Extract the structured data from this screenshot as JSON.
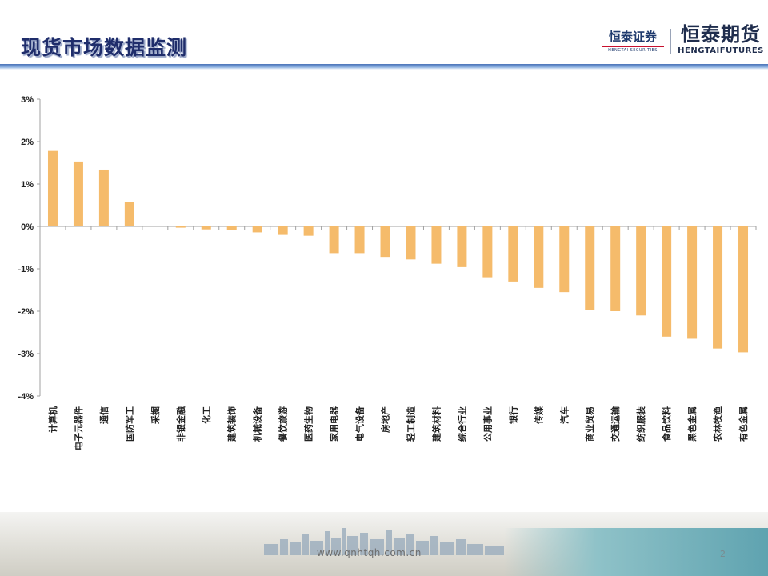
{
  "header": {
    "title": "现货市场数据监测",
    "logo_securities": {
      "main": "恒泰证券",
      "sub": "HENGTAI SECURITIES"
    },
    "logo_futures": {
      "main": "恒泰期货",
      "sub": "HENGTAIFUTURES"
    }
  },
  "footer": {
    "url": "www.qnhtqh.com.cn",
    "page_number": "2"
  },
  "colors": {
    "bar": "#f5bb6b",
    "title": "#1f2d6b",
    "axis": "#a0a0a0"
  },
  "chart_data": {
    "type": "bar",
    "title": "",
    "xlabel": "",
    "ylabel": "",
    "ylim": [
      -4,
      3
    ],
    "yticks": [
      {
        "value": 3,
        "label": "3%"
      },
      {
        "value": 2,
        "label": "2%"
      },
      {
        "value": 1,
        "label": "1%"
      },
      {
        "value": 0,
        "label": "0%"
      },
      {
        "value": -1,
        "label": "-1%"
      },
      {
        "value": -2,
        "label": "-2%"
      },
      {
        "value": -3,
        "label": "-3%"
      },
      {
        "value": -4,
        "label": "-4%"
      }
    ],
    "grid": false,
    "legend": "none",
    "categories": [
      "计算机",
      "电子元器件",
      "通信",
      "国防军工",
      "采掘",
      "非银金融",
      "化工",
      "建筑装饰",
      "机械设备",
      "餐饮旅游",
      "医药生物",
      "家用电器",
      "电气设备",
      "房地产",
      "轻工制造",
      "建筑材料",
      "综合行业",
      "公用事业",
      "银行",
      "传媒",
      "汽车",
      "商业贸易",
      "交通运输",
      "纺织服装",
      "食品饮料",
      "黑色金属",
      "农林牧渔",
      "有色金属"
    ],
    "values": [
      1.78,
      1.53,
      1.34,
      0.58,
      0.0,
      -0.03,
      -0.07,
      -0.09,
      -0.14,
      -0.2,
      -0.22,
      -0.63,
      -0.63,
      -0.72,
      -0.78,
      -0.88,
      -0.96,
      -1.2,
      -1.3,
      -1.45,
      -1.55,
      -1.97,
      -2.0,
      -2.1,
      -2.6,
      -2.65,
      -2.88,
      -2.97
    ]
  }
}
